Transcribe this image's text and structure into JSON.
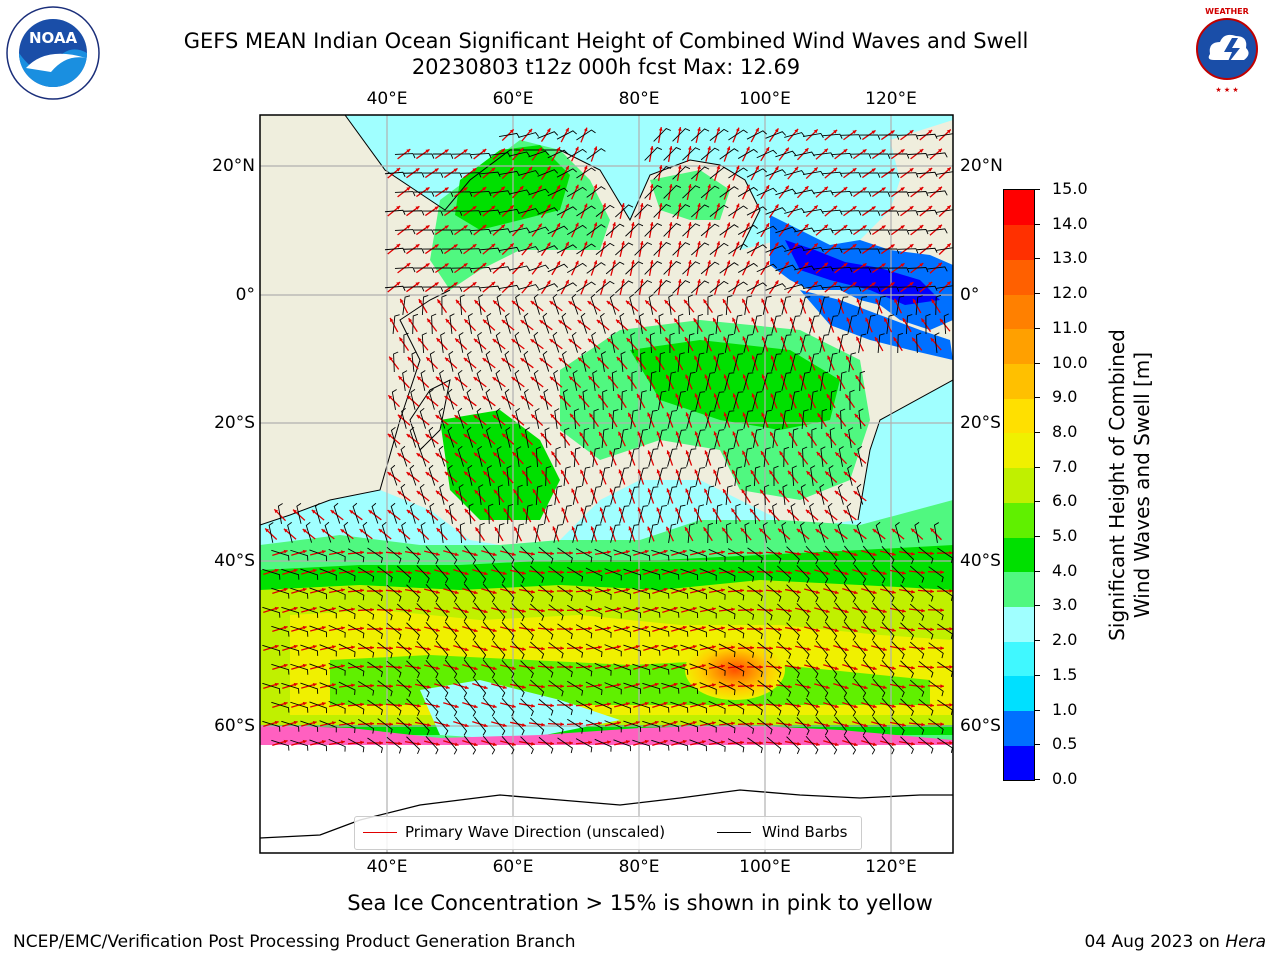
{
  "header": {
    "title_line1": "GEFS MEAN Indian Ocean Significant Height of Combined Wind Waves and Swell",
    "title_line2": "20230803 t12z 000h fcst   Max: 12.69"
  },
  "logos": {
    "left": {
      "icon": "noaa-logo-icon",
      "text": "NOAA"
    },
    "right": {
      "icon": "nws-logo-icon",
      "text": "NATIONAL WEATHER SERVICE"
    }
  },
  "map": {
    "lon_labels": [
      "40°E",
      "60°E",
      "80°E",
      "100°E",
      "120°E"
    ],
    "lat_labels": [
      "20°N",
      "0°",
      "20°S",
      "40°S",
      "60°S"
    ],
    "colors": {
      "land": "#efeedd",
      "ice_white": "#ffffff",
      "grid": "#b0b0b0",
      "wave_dir": "#e00000",
      "barbs": "#000000"
    }
  },
  "legend": {
    "primary_wave": "Primary Wave Direction (unscaled)",
    "wind_barbs": "Wind Barbs"
  },
  "colorbar": {
    "title_line1": "Significant Height of Combined",
    "title_line2": "Wind Waves and Swell [m]",
    "ticks": [
      "15.0",
      "14.0",
      "13.0",
      "12.0",
      "11.0",
      "10.0",
      "9.0",
      "8.0",
      "7.0",
      "6.0",
      "5.0",
      "4.0",
      "3.0",
      "2.0",
      "1.5",
      "1.0",
      "0.5",
      "0.0"
    ],
    "colors": [
      "#0000ff",
      "#0070ff",
      "#00e0ff",
      "#40f8ff",
      "#a0ffff",
      "#50f880",
      "#00e000",
      "#60f000",
      "#c0f000",
      "#f0f000",
      "#ffe000",
      "#ffc000",
      "#ffa000",
      "#ff8000",
      "#ff6000",
      "#ff3000",
      "#ff0000"
    ]
  },
  "note": "Sea Ice Concentration > 15% is shown in pink to yellow",
  "footer": {
    "left": "NCEP/EMC/Verification Post Processing Product Generation Branch",
    "right_prefix": "04 Aug 2023 on ",
    "right_host": "Hera"
  }
}
